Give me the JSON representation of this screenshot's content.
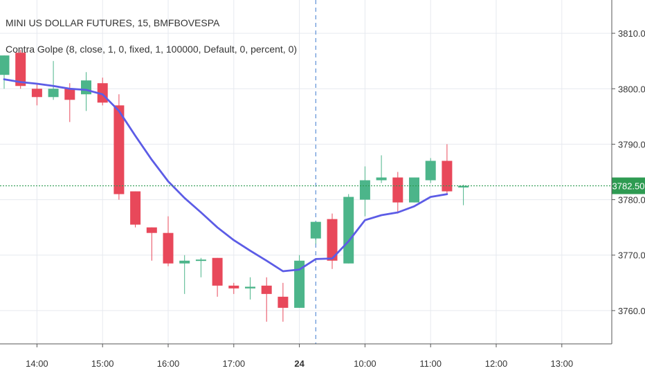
{
  "header": {
    "symbol_line": "MINI US DOLLAR FUTURES, 15, BMFBOVESPA",
    "indicator_line": "Contra Golpe (8, close, 1, 0, fixed, 1, 100000, Default, 0, percent, 0)"
  },
  "colors": {
    "up": "#4cb58a",
    "down": "#e8485a",
    "ma_line": "#5c5ce6",
    "price_line": "#2e9b52",
    "price_tag": "#2e9b52",
    "grid": "#e6e9ef",
    "session_divider": "#5b8fd6"
  },
  "chart_data": {
    "type": "candlestick",
    "x_tick_labels": [
      "14:00",
      "15:00",
      "16:00",
      "17:00",
      "24",
      "10:00",
      "11:00",
      "12:00",
      "13:00"
    ],
    "y_ticks": [
      3760,
      3770,
      3780,
      3790,
      3800,
      3810
    ],
    "y_tick_labels": [
      "3760.00",
      "3770.00",
      "3780.00",
      "3790.00",
      "3800.00",
      "3810.00"
    ],
    "ylim": [
      3754,
      3816
    ],
    "last_price": 3782.5,
    "last_price_label": "3782.50",
    "session_break_x": 19,
    "candles": [
      {
        "x": 0,
        "open": 3802.5,
        "high": 3806,
        "low": 3800,
        "close": 3806
      },
      {
        "x": 1,
        "open": 3806.5,
        "high": 3807,
        "low": 3800,
        "close": 3800.5
      },
      {
        "x": 2,
        "open": 3800,
        "high": 3801,
        "low": 3797,
        "close": 3798.5
      },
      {
        "x": 3,
        "open": 3798.5,
        "high": 3805,
        "low": 3798,
        "close": 3800
      },
      {
        "x": 4,
        "open": 3800,
        "high": 3801,
        "low": 3794,
        "close": 3798
      },
      {
        "x": 5,
        "open": 3799,
        "high": 3803,
        "low": 3796,
        "close": 3801.5
      },
      {
        "x": 6,
        "open": 3801,
        "high": 3802,
        "low": 3797,
        "close": 3797.5
      },
      {
        "x": 7,
        "open": 3797,
        "high": 3799,
        "low": 3780,
        "close": 3781
      },
      {
        "x": 8,
        "open": 3781.5,
        "high": 3781.5,
        "low": 3775,
        "close": 3775.5
      },
      {
        "x": 9,
        "open": 3775,
        "high": 3775,
        "low": 3769,
        "close": 3774
      },
      {
        "x": 10,
        "open": 3774,
        "high": 3777,
        "low": 3768,
        "close": 3768.5
      },
      {
        "x": 11,
        "open": 3768.5,
        "high": 3770,
        "low": 3763,
        "close": 3769
      },
      {
        "x": 12,
        "open": 3769,
        "high": 3769.5,
        "low": 3766,
        "close": 3769.2
      },
      {
        "x": 13,
        "open": 3769.5,
        "high": 3769.5,
        "low": 3762.5,
        "close": 3764.5
      },
      {
        "x": 14,
        "open": 3764.5,
        "high": 3765,
        "low": 3763,
        "close": 3764
      },
      {
        "x": 15,
        "open": 3764,
        "high": 3766,
        "low": 3762,
        "close": 3764.3
      },
      {
        "x": 16,
        "open": 3764.5,
        "high": 3766,
        "low": 3758,
        "close": 3763
      },
      {
        "x": 17,
        "open": 3762.5,
        "high": 3765,
        "low": 3758,
        "close": 3760.5
      },
      {
        "x": 18,
        "open": 3760.5,
        "high": 3770,
        "low": 3760.5,
        "close": 3769
      },
      {
        "x": 19,
        "open": 3773,
        "high": 3776,
        "low": 3772,
        "close": 3776
      },
      {
        "x": 20,
        "open": 3776.5,
        "high": 3777.5,
        "low": 3767.5,
        "close": 3769
      },
      {
        "x": 21,
        "open": 3768.5,
        "high": 3781,
        "low": 3768.5,
        "close": 3780.5
      },
      {
        "x": 22,
        "open": 3780,
        "high": 3786,
        "low": 3777,
        "close": 3783.5
      },
      {
        "x": 23,
        "open": 3783.5,
        "high": 3788,
        "low": 3783,
        "close": 3784
      },
      {
        "x": 24,
        "open": 3784,
        "high": 3785,
        "low": 3777.5,
        "close": 3779.5
      },
      {
        "x": 25,
        "open": 3779.5,
        "high": 3784,
        "low": 3779.5,
        "close": 3784
      },
      {
        "x": 26,
        "open": 3783.5,
        "high": 3787.5,
        "low": 3783,
        "close": 3787
      },
      {
        "x": 27,
        "open": 3787,
        "high": 3790,
        "low": 3781,
        "close": 3781.5
      },
      {
        "x": 28,
        "open": 3782.2,
        "high": 3782.7,
        "low": 3779,
        "close": 3782.5
      }
    ],
    "series": [
      {
        "name": "",
        "x": [
          0,
          1,
          2,
          3,
          4,
          5,
          6,
          7,
          8,
          9,
          10,
          11,
          12,
          13,
          14,
          15,
          16,
          17,
          18,
          19,
          20,
          21,
          22,
          23,
          24,
          25,
          26,
          27
        ],
        "values": [
          3801.7,
          3801.2,
          3800.9,
          3800.5,
          3800,
          3799.8,
          3799,
          3796,
          3791.5,
          3787.2,
          3783.3,
          3780.3,
          3777.7,
          3775,
          3772.7,
          3770.8,
          3769,
          3767.1,
          3767.4,
          3769.3,
          3769.4,
          3772.5,
          3776.3,
          3777.2,
          3777.7,
          3778.8,
          3780.5,
          3781
        ]
      }
    ]
  }
}
